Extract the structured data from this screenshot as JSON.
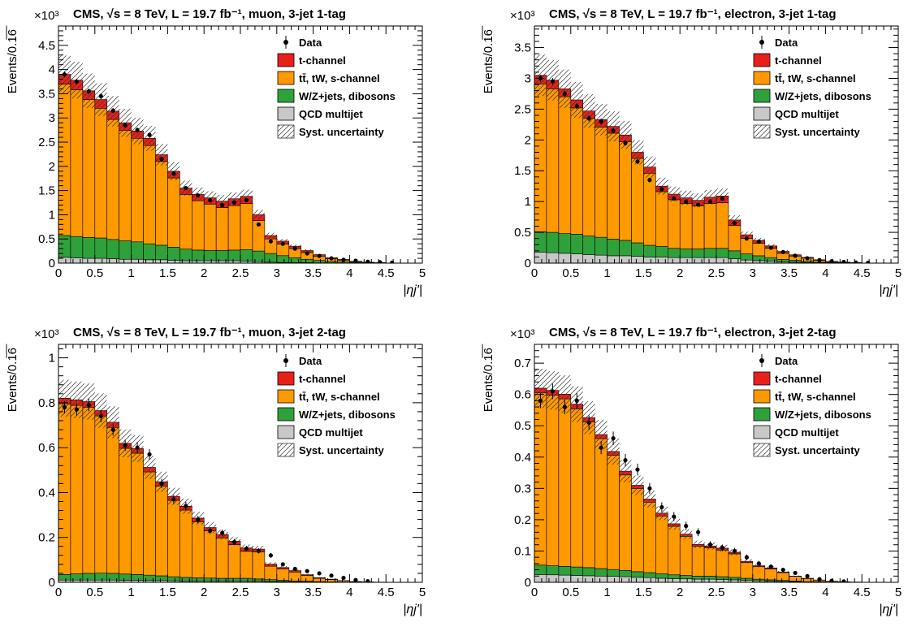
{
  "colors": {
    "tchannel": "#e8201a",
    "ttbar": "#ff9900",
    "wzjets": "#2fa13b",
    "qcd": "#c8c8c8",
    "data": "#000000"
  },
  "legend": [
    {
      "key": "data",
      "label": "Data",
      "style": "marker"
    },
    {
      "key": "tchannel",
      "label": "t-channel",
      "style": "box"
    },
    {
      "key": "ttbar",
      "label": "tt̄, tW, s-channel",
      "style": "box"
    },
    {
      "key": "wzjets",
      "label": "W/Z+jets, dibosons",
      "style": "box"
    },
    {
      "key": "qcd",
      "label": "QCD multijet",
      "style": "box"
    },
    {
      "key": "syst",
      "label": "Syst. uncertainty",
      "style": "hatch"
    }
  ],
  "chart_data": [
    {
      "type": "bar",
      "title": "CMS, √s = 8 TeV, L = 19.7 fb⁻¹, muon, 3-jet 1-tag",
      "multiplier": "×10³",
      "xlabel": "|ηj'|",
      "ylabel": "Events/0.1̅6̅",
      "xlim": [
        0,
        5
      ],
      "ylim": [
        0,
        4.9
      ],
      "x_ticks": [
        "0",
        "0.5",
        "1",
        "1.5",
        "2",
        "2.5",
        "3",
        "3.5",
        "4",
        "4.5",
        "5"
      ],
      "y_ticks": [
        0,
        0.5,
        1,
        1.5,
        2,
        2.5,
        3,
        3.5,
        4,
        4.5
      ],
      "y_tick_labels": [
        "0",
        "0.5",
        "1",
        "1.5",
        "2",
        "2.5",
        "3",
        "3.5",
        "4",
        "4.5"
      ],
      "bin_width": 0.1667,
      "series": [
        {
          "name": "QCD multijet",
          "key": "qcd",
          "values": [
            0.12,
            0.11,
            0.1,
            0.1,
            0.09,
            0.08,
            0.08,
            0.07,
            0.07,
            0.06,
            0.05,
            0.05,
            0.05,
            0.05,
            0.05,
            0.04,
            0.03,
            0.02,
            0.015,
            0.01,
            0.01,
            0.005,
            0.003,
            0.002,
            0.001,
            0.0,
            0.0,
            0.0,
            0.0,
            0.0
          ]
        },
        {
          "name": "W/Z+jets, dibosons",
          "key": "wzjets",
          "values": [
            0.45,
            0.44,
            0.43,
            0.42,
            0.4,
            0.38,
            0.36,
            0.33,
            0.3,
            0.27,
            0.24,
            0.22,
            0.21,
            0.21,
            0.22,
            0.24,
            0.22,
            0.18,
            0.14,
            0.1,
            0.07,
            0.05,
            0.03,
            0.02,
            0.01,
            0.005,
            0.003,
            0.0,
            0.0,
            0.0
          ]
        },
        {
          "name": "tt̄, tW, s-channel",
          "key": "ttbar",
          "values": [
            3.13,
            3.03,
            2.85,
            2.68,
            2.48,
            2.28,
            2.14,
            2.03,
            1.73,
            1.43,
            1.13,
            1.02,
            0.96,
            0.89,
            0.92,
            0.95,
            0.63,
            0.3,
            0.24,
            0.19,
            0.14,
            0.09,
            0.06,
            0.04,
            0.02,
            0.01,
            0.005,
            0.0,
            0.0,
            0.0
          ]
        },
        {
          "name": "t-channel",
          "key": "tchannel",
          "values": [
            0.2,
            0.2,
            0.18,
            0.18,
            0.17,
            0.16,
            0.15,
            0.15,
            0.14,
            0.14,
            0.13,
            0.13,
            0.13,
            0.13,
            0.14,
            0.15,
            0.12,
            0.07,
            0.06,
            0.05,
            0.04,
            0.03,
            0.02,
            0.015,
            0.01,
            0.005,
            0.003,
            0.0,
            0.0,
            0.0
          ]
        }
      ],
      "data": [
        3.9,
        3.75,
        3.55,
        3.45,
        3.15,
        2.85,
        2.75,
        2.65,
        2.15,
        1.85,
        1.55,
        1.4,
        1.3,
        1.2,
        1.25,
        1.3,
        0.8,
        0.45,
        0.4,
        0.3,
        0.2,
        0.15,
        0.1,
        0.07,
        0.05,
        0.03,
        0.02,
        0.01,
        0.0,
        0.0
      ],
      "syst_rel": 0.1
    },
    {
      "type": "bar",
      "title": "CMS, √s = 8 TeV, L = 19.7 fb⁻¹, electron, 3-jet 1-tag",
      "multiplier": "×10³",
      "xlabel": "|ηj'|",
      "ylabel": "Events/0.1̅6̅",
      "xlim": [
        0,
        5
      ],
      "ylim": [
        0,
        3.85
      ],
      "x_ticks": [
        "0",
        "0.5",
        "1",
        "1.5",
        "2",
        "2.5",
        "3",
        "3.5",
        "4",
        "4.5",
        "5"
      ],
      "y_ticks": [
        0,
        0.5,
        1,
        1.5,
        2,
        2.5,
        3,
        3.5
      ],
      "y_tick_labels": [
        "0",
        "0.5",
        "1",
        "1.5",
        "2",
        "2.5",
        "3",
        "3.5"
      ],
      "bin_width": 0.1667,
      "series": [
        {
          "name": "QCD multijet",
          "key": "qcd",
          "values": [
            0.18,
            0.17,
            0.16,
            0.15,
            0.14,
            0.13,
            0.12,
            0.12,
            0.11,
            0.1,
            0.1,
            0.09,
            0.09,
            0.09,
            0.09,
            0.09,
            0.07,
            0.05,
            0.04,
            0.03,
            0.02,
            0.015,
            0.01,
            0.005,
            0.003,
            0.002,
            0.001,
            0.0,
            0.0,
            0.0
          ]
        },
        {
          "name": "W/Z+jets, dibosons",
          "key": "wzjets",
          "values": [
            0.33,
            0.33,
            0.32,
            0.32,
            0.3,
            0.29,
            0.27,
            0.25,
            0.22,
            0.19,
            0.17,
            0.15,
            0.14,
            0.14,
            0.15,
            0.15,
            0.13,
            0.1,
            0.08,
            0.06,
            0.04,
            0.03,
            0.02,
            0.01,
            0.007,
            0.004,
            0.002,
            0.0,
            0.0,
            0.0
          ]
        },
        {
          "name": "tt̄, tW, s-channel",
          "key": "ttbar",
          "values": [
            2.4,
            2.33,
            2.22,
            2.05,
            1.91,
            1.79,
            1.72,
            1.6,
            1.37,
            1.17,
            0.89,
            0.79,
            0.74,
            0.7,
            0.73,
            0.74,
            0.41,
            0.25,
            0.2,
            0.15,
            0.1,
            0.07,
            0.05,
            0.03,
            0.015,
            0.008,
            0.004,
            0.0,
            0.0,
            0.0
          ]
        },
        {
          "name": "t-channel",
          "key": "tchannel",
          "values": [
            0.14,
            0.14,
            0.13,
            0.13,
            0.12,
            0.12,
            0.11,
            0.11,
            0.1,
            0.1,
            0.09,
            0.09,
            0.09,
            0.09,
            0.1,
            0.11,
            0.09,
            0.06,
            0.05,
            0.04,
            0.03,
            0.02,
            0.015,
            0.01,
            0.006,
            0.003,
            0.002,
            0.0,
            0.0,
            0.0
          ]
        }
      ],
      "data": [
        3.0,
        2.95,
        2.75,
        2.55,
        2.35,
        2.3,
        2.15,
        1.95,
        1.65,
        1.35,
        1.2,
        1.05,
        1.0,
        0.95,
        1.0,
        1.05,
        0.65,
        0.4,
        0.35,
        0.25,
        0.18,
        0.12,
        0.08,
        0.05,
        0.03,
        0.02,
        0.01,
        0.005,
        0.0,
        0.0
      ],
      "syst_rel": 0.11
    },
    {
      "type": "bar",
      "title": "CMS, √s = 8 TeV, L = 19.7 fb⁻¹, muon, 3-jet 2-tag",
      "multiplier": "×10³",
      "xlabel": "|ηj'|",
      "ylabel": "Events/0.1̅6̅",
      "xlim": [
        0,
        5
      ],
      "ylim": [
        0,
        1.06
      ],
      "x_ticks": [
        "0",
        "0.5",
        "1",
        "1.5",
        "2",
        "2.5",
        "3",
        "3.5",
        "4",
        "4.5",
        "5"
      ],
      "y_ticks": [
        0,
        0.2,
        0.4,
        0.6,
        0.8,
        1.0
      ],
      "y_tick_labels": [
        "0",
        "0.2",
        "0.4",
        "0.6",
        "0.8",
        "1"
      ],
      "bin_width": 0.1667,
      "series": [
        {
          "name": "QCD multijet",
          "key": "qcd",
          "values": [
            0.01,
            0.01,
            0.01,
            0.01,
            0.01,
            0.009,
            0.009,
            0.008,
            0.008,
            0.007,
            0.006,
            0.006,
            0.006,
            0.006,
            0.006,
            0.006,
            0.005,
            0.004,
            0.003,
            0.002,
            0.002,
            0.001,
            0.001,
            0.0005,
            0.0,
            0.0,
            0.0,
            0.0,
            0.0,
            0.0
          ]
        },
        {
          "name": "W/Z+jets, dibosons",
          "key": "wzjets",
          "values": [
            0.025,
            0.028,
            0.03,
            0.031,
            0.03,
            0.028,
            0.026,
            0.024,
            0.021,
            0.018,
            0.016,
            0.014,
            0.013,
            0.012,
            0.012,
            0.012,
            0.01,
            0.008,
            0.006,
            0.004,
            0.003,
            0.002,
            0.001,
            0.0005,
            0.0,
            0.0,
            0.0,
            0.0,
            0.0,
            0.0
          ]
        },
        {
          "name": "tt̄, tW, s-channel",
          "key": "ttbar",
          "values": [
            0.76,
            0.75,
            0.74,
            0.7,
            0.65,
            0.56,
            0.54,
            0.46,
            0.4,
            0.34,
            0.3,
            0.25,
            0.21,
            0.18,
            0.15,
            0.12,
            0.12,
            0.06,
            0.05,
            0.04,
            0.025,
            0.015,
            0.01,
            0.006,
            0.003,
            0.002,
            0.001,
            0.0,
            0.0,
            0.0
          ]
        },
        {
          "name": "t-channel",
          "key": "tchannel",
          "values": [
            0.025,
            0.025,
            0.025,
            0.024,
            0.023,
            0.022,
            0.021,
            0.02,
            0.019,
            0.018,
            0.017,
            0.016,
            0.015,
            0.015,
            0.015,
            0.015,
            0.013,
            0.009,
            0.007,
            0.006,
            0.004,
            0.003,
            0.002,
            0.001,
            0.0005,
            0.0,
            0.0,
            0.0,
            0.0,
            0.0
          ]
        }
      ],
      "data": [
        0.78,
        0.77,
        0.79,
        0.74,
        0.68,
        0.61,
        0.6,
        0.57,
        0.44,
        0.37,
        0.34,
        0.28,
        0.23,
        0.22,
        0.18,
        0.15,
        0.14,
        0.12,
        0.08,
        0.06,
        0.05,
        0.04,
        0.03,
        0.02,
        0.01,
        0.005,
        0.0,
        0.0,
        0.0,
        0.0
      ],
      "syst_rel": 0.1
    },
    {
      "type": "bar",
      "title": "CMS, √s = 8 TeV, L = 19.7 fb⁻¹, electron, 3-jet 2-tag",
      "multiplier": "×10³",
      "xlabel": "|ηj'|",
      "ylabel": "Events/0.1̅6̅",
      "xlim": [
        0,
        5
      ],
      "ylim": [
        0,
        0.76
      ],
      "x_ticks": [
        "0",
        "0.5",
        "1",
        "1.5",
        "2",
        "2.5",
        "3",
        "3.5",
        "4",
        "4.5",
        "5"
      ],
      "y_ticks": [
        0,
        0.1,
        0.2,
        0.3,
        0.4,
        0.5,
        0.6,
        0.7
      ],
      "y_tick_labels": [
        "0",
        "0.1",
        "0.2",
        "0.3",
        "0.4",
        "0.5",
        "0.6",
        "0.7"
      ],
      "bin_width": 0.1667,
      "series": [
        {
          "name": "QCD multijet",
          "key": "qcd",
          "values": [
            0.025,
            0.024,
            0.023,
            0.022,
            0.021,
            0.02,
            0.019,
            0.018,
            0.016,
            0.015,
            0.013,
            0.012,
            0.011,
            0.01,
            0.01,
            0.009,
            0.008,
            0.006,
            0.005,
            0.004,
            0.003,
            0.002,
            0.001,
            0.001,
            0.0005,
            0.0,
            0.0,
            0.0,
            0.0,
            0.0
          ]
        },
        {
          "name": "W/Z+jets, dibosons",
          "key": "wzjets",
          "values": [
            0.03,
            0.029,
            0.028,
            0.027,
            0.026,
            0.024,
            0.022,
            0.02,
            0.018,
            0.016,
            0.014,
            0.012,
            0.011,
            0.01,
            0.01,
            0.009,
            0.008,
            0.007,
            0.005,
            0.004,
            0.003,
            0.002,
            0.001,
            0.001,
            0.0005,
            0.0,
            0.0,
            0.0,
            0.0,
            0.0
          ]
        },
        {
          "name": "tt̄, tW, s-channel",
          "key": "ttbar",
          "values": [
            0.55,
            0.545,
            0.535,
            0.505,
            0.465,
            0.415,
            0.365,
            0.305,
            0.265,
            0.225,
            0.185,
            0.155,
            0.125,
            0.095,
            0.09,
            0.085,
            0.075,
            0.05,
            0.04,
            0.035,
            0.025,
            0.015,
            0.01,
            0.005,
            0.003,
            0.002,
            0.001,
            0.0,
            0.0,
            0.0
          ]
        },
        {
          "name": "t-channel",
          "key": "tchannel",
          "values": [
            0.015,
            0.015,
            0.015,
            0.015,
            0.014,
            0.013,
            0.012,
            0.012,
            0.011,
            0.01,
            0.009,
            0.008,
            0.007,
            0.006,
            0.006,
            0.006,
            0.005,
            0.004,
            0.003,
            0.003,
            0.002,
            0.001,
            0.001,
            0.0005,
            0.0,
            0.0,
            0.0,
            0.0,
            0.0,
            0.0
          ]
        }
      ],
      "data": [
        0.58,
        0.61,
        0.56,
        0.58,
        0.51,
        0.43,
        0.46,
        0.39,
        0.36,
        0.3,
        0.24,
        0.21,
        0.18,
        0.16,
        0.12,
        0.11,
        0.1,
        0.08,
        0.06,
        0.05,
        0.04,
        0.03,
        0.02,
        0.01,
        0.005,
        0.003,
        0.0,
        0.0,
        0.0,
        0.0
      ],
      "syst_rel": 0.1
    }
  ]
}
